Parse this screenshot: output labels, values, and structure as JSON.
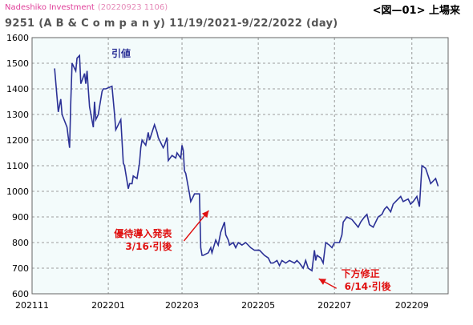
{
  "header": {
    "source": "Nadeshiko Investment",
    "stamp": "(20220923 1106)",
    "figure_label": "<図—01> 上場来",
    "title": "9251 (A B & C o m p a n y) 11/19/2021-9/22/2022 (day)"
  },
  "colors": {
    "line": "#2b3196",
    "annotation": "#e01010",
    "plot_bg": "#f3fbfb",
    "grid": "#808080"
  },
  "chart_data": {
    "type": "line",
    "x_is_date": true,
    "xlim": [
      "2021-11-01",
      "2022-09-30"
    ],
    "ylim": [
      600,
      1600
    ],
    "y_ticks": [
      600,
      700,
      800,
      900,
      1000,
      1100,
      1200,
      1300,
      1400,
      1500,
      1600
    ],
    "x_ticks": [
      {
        "date": "2021-11-01",
        "label": "202111"
      },
      {
        "date": "2022-01-01",
        "label": "202201"
      },
      {
        "date": "2022-03-01",
        "label": "202203"
      },
      {
        "date": "2022-05-01",
        "label": "202205"
      },
      {
        "date": "2022-07-01",
        "label": "202207"
      },
      {
        "date": "2022-09-01",
        "label": "202209"
      }
    ],
    "grid": true,
    "series": [
      {
        "name": "引値",
        "points": [
          [
            "2021-11-19",
            1480
          ],
          [
            "2021-11-22",
            1310
          ],
          [
            "2021-11-24",
            1360
          ],
          [
            "2021-11-25",
            1300
          ],
          [
            "2021-11-29",
            1250
          ],
          [
            "2021-12-01",
            1170
          ],
          [
            "2021-12-02",
            1350
          ],
          [
            "2021-12-03",
            1500
          ],
          [
            "2021-12-06",
            1470
          ],
          [
            "2021-12-07",
            1520
          ],
          [
            "2021-12-09",
            1530
          ],
          [
            "2021-12-10",
            1420
          ],
          [
            "2021-12-13",
            1460
          ],
          [
            "2021-12-14",
            1420
          ],
          [
            "2021-12-15",
            1470
          ],
          [
            "2021-12-16",
            1400
          ],
          [
            "2021-12-17",
            1330
          ],
          [
            "2021-12-20",
            1250
          ],
          [
            "2021-12-21",
            1350
          ],
          [
            "2021-12-22",
            1280
          ],
          [
            "2021-12-24",
            1300
          ],
          [
            "2021-12-27",
            1390
          ],
          [
            "2021-12-28",
            1400
          ],
          [
            "2021-12-30",
            1400
          ],
          [
            "2022-01-04",
            1410
          ],
          [
            "2022-01-06",
            1300
          ],
          [
            "2022-01-07",
            1240
          ],
          [
            "2022-01-11",
            1280
          ],
          [
            "2022-01-13",
            1110
          ],
          [
            "2022-01-14",
            1100
          ],
          [
            "2022-01-17",
            1010
          ],
          [
            "2022-01-18",
            1030
          ],
          [
            "2022-01-20",
            1030
          ],
          [
            "2022-01-21",
            1060
          ],
          [
            "2022-01-24",
            1050
          ],
          [
            "2022-01-26",
            1110
          ],
          [
            "2022-01-27",
            1170
          ],
          [
            "2022-01-28",
            1200
          ],
          [
            "2022-01-31",
            1180
          ],
          [
            "2022-02-02",
            1230
          ],
          [
            "2022-02-03",
            1200
          ],
          [
            "2022-02-07",
            1260
          ],
          [
            "2022-02-09",
            1230
          ],
          [
            "2022-02-10",
            1210
          ],
          [
            "2022-02-14",
            1170
          ],
          [
            "2022-02-15",
            1180
          ],
          [
            "2022-02-17",
            1210
          ],
          [
            "2022-02-18",
            1120
          ],
          [
            "2022-02-21",
            1140
          ],
          [
            "2022-02-24",
            1130
          ],
          [
            "2022-02-25",
            1150
          ],
          [
            "2022-02-28",
            1130
          ],
          [
            "2022-03-01",
            1180
          ],
          [
            "2022-03-02",
            1160
          ],
          [
            "2022-03-03",
            1080
          ],
          [
            "2022-03-04",
            1070
          ],
          [
            "2022-03-07",
            990
          ],
          [
            "2022-03-08",
            960
          ],
          [
            "2022-03-10",
            980
          ],
          [
            "2022-03-11",
            990
          ],
          [
            "2022-03-14",
            990
          ],
          [
            "2022-03-15",
            990
          ],
          [
            "2022-03-16",
            780
          ],
          [
            "2022-03-17",
            750
          ],
          [
            "2022-03-18",
            750
          ],
          [
            "2022-03-22",
            760
          ],
          [
            "2022-03-24",
            780
          ],
          [
            "2022-03-25",
            760
          ],
          [
            "2022-03-28",
            810
          ],
          [
            "2022-03-30",
            790
          ],
          [
            "2022-04-01",
            840
          ],
          [
            "2022-04-04",
            880
          ],
          [
            "2022-04-05",
            830
          ],
          [
            "2022-04-07",
            810
          ],
          [
            "2022-04-08",
            790
          ],
          [
            "2022-04-11",
            800
          ],
          [
            "2022-04-13",
            780
          ],
          [
            "2022-04-15",
            800
          ],
          [
            "2022-04-18",
            790
          ],
          [
            "2022-04-21",
            800
          ],
          [
            "2022-04-25",
            780
          ],
          [
            "2022-04-28",
            770
          ],
          [
            "2022-05-02",
            770
          ],
          [
            "2022-05-06",
            750
          ],
          [
            "2022-05-09",
            740
          ],
          [
            "2022-05-11",
            720
          ],
          [
            "2022-05-13",
            720
          ],
          [
            "2022-05-16",
            730
          ],
          [
            "2022-05-18",
            710
          ],
          [
            "2022-05-20",
            730
          ],
          [
            "2022-05-23",
            720
          ],
          [
            "2022-05-26",
            730
          ],
          [
            "2022-05-30",
            720
          ],
          [
            "2022-06-01",
            730
          ],
          [
            "2022-06-03",
            720
          ],
          [
            "2022-06-06",
            700
          ],
          [
            "2022-06-08",
            730
          ],
          [
            "2022-06-10",
            700
          ],
          [
            "2022-06-13",
            690
          ],
          [
            "2022-06-15",
            770
          ],
          [
            "2022-06-16",
            730
          ],
          [
            "2022-06-17",
            750
          ],
          [
            "2022-06-20",
            740
          ],
          [
            "2022-06-22",
            720
          ],
          [
            "2022-06-23",
            760
          ],
          [
            "2022-06-24",
            800
          ],
          [
            "2022-06-27",
            790
          ],
          [
            "2022-06-29",
            780
          ],
          [
            "2022-07-01",
            800
          ],
          [
            "2022-07-05",
            800
          ],
          [
            "2022-07-07",
            830
          ],
          [
            "2022-07-08",
            880
          ],
          [
            "2022-07-11",
            900
          ],
          [
            "2022-07-15",
            890
          ],
          [
            "2022-07-20",
            860
          ],
          [
            "2022-07-22",
            880
          ],
          [
            "2022-07-25",
            900
          ],
          [
            "2022-07-27",
            910
          ],
          [
            "2022-07-29",
            870
          ],
          [
            "2022-08-01",
            860
          ],
          [
            "2022-08-03",
            880
          ],
          [
            "2022-08-05",
            900
          ],
          [
            "2022-08-08",
            910
          ],
          [
            "2022-08-10",
            930
          ],
          [
            "2022-08-12",
            940
          ],
          [
            "2022-08-15",
            920
          ],
          [
            "2022-08-17",
            950
          ],
          [
            "2022-08-19",
            960
          ],
          [
            "2022-08-23",
            980
          ],
          [
            "2022-08-25",
            960
          ],
          [
            "2022-08-29",
            970
          ],
          [
            "2022-08-31",
            950
          ],
          [
            "2022-09-02",
            960
          ],
          [
            "2022-09-05",
            980
          ],
          [
            "2022-09-07",
            940
          ],
          [
            "2022-09-09",
            1100
          ],
          [
            "2022-09-12",
            1090
          ],
          [
            "2022-09-14",
            1060
          ],
          [
            "2022-09-16",
            1030
          ],
          [
            "2022-09-20",
            1050
          ],
          [
            "2022-09-22",
            1020
          ]
        ]
      }
    ],
    "annotations": [
      {
        "lines": [
          "優待導入発表",
          "3/16·引後"
        ],
        "target": [
          "2022-03-16",
          1000
        ]
      },
      {
        "lines": [
          "下方修正",
          "6/14·引後"
        ],
        "target": [
          "2022-06-14",
          690
        ]
      }
    ]
  }
}
